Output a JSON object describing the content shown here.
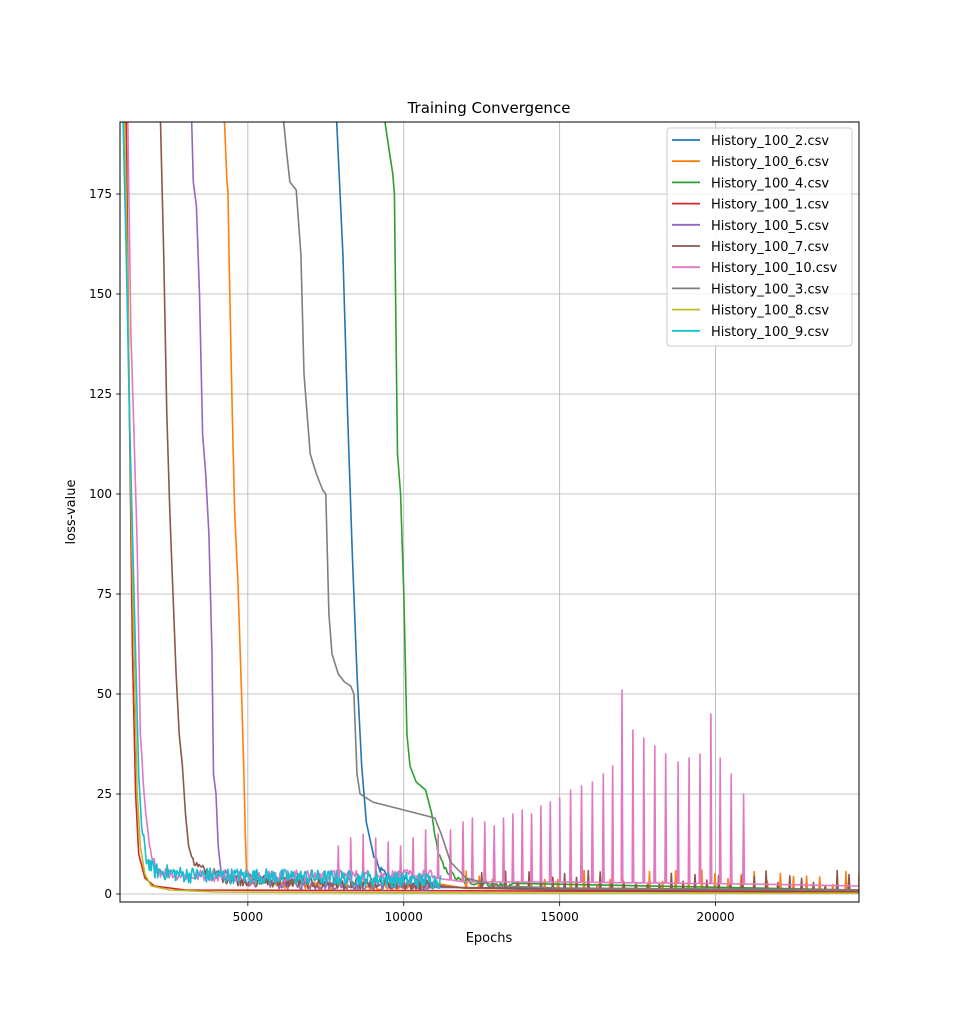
{
  "chart_data": {
    "type": "line",
    "title": "Training Convergence",
    "xlabel": "Epochs",
    "ylabel": "loss-value",
    "xlim": [
      900,
      24600
    ],
    "ylim": [
      -2,
      193
    ],
    "x_ticks": [
      5000,
      10000,
      15000,
      20000
    ],
    "y_ticks": [
      0,
      25,
      50,
      75,
      100,
      125,
      150,
      175
    ],
    "grid": true,
    "legend_position": "top-right",
    "series": [
      {
        "name": "History_100_2.csv",
        "color": "#1f77b4",
        "points": [
          [
            7850,
            193
          ],
          [
            8050,
            160
          ],
          [
            8200,
            120
          ],
          [
            8350,
            85
          ],
          [
            8500,
            55
          ],
          [
            8650,
            32
          ],
          [
            8800,
            18
          ],
          [
            9000,
            10
          ],
          [
            9200,
            6
          ],
          [
            9500,
            4
          ],
          [
            10000,
            3
          ],
          [
            10500,
            2.5
          ],
          [
            11200,
            2
          ],
          [
            12000,
            1.5
          ],
          [
            15000,
            1
          ],
          [
            20000,
            0.8
          ],
          [
            24600,
            0.7
          ]
        ],
        "noise": {
          "from": 9000,
          "to": 11200,
          "amp": 2,
          "step": 40
        }
      },
      {
        "name": "History_100_6.csv",
        "color": "#ff7f0e",
        "points": [
          [
            4250,
            193
          ],
          [
            4330,
            178
          ],
          [
            4360,
            176
          ],
          [
            4420,
            150
          ],
          [
            4500,
            120
          ],
          [
            4580,
            95
          ],
          [
            4680,
            78
          ],
          [
            4750,
            62
          ],
          [
            4820,
            45
          ],
          [
            4880,
            28
          ],
          [
            4920,
            15
          ],
          [
            4960,
            5
          ],
          [
            5100,
            3
          ],
          [
            6000,
            2
          ],
          [
            9000,
            1.5
          ],
          [
            24600,
            1
          ]
        ],
        "spikes": {
          "from": 12000,
          "to": 24600,
          "step": 420,
          "min": 2,
          "max": 6
        },
        "noise": {
          "from": 5000,
          "to": 11000,
          "amp": 2,
          "step": 40
        }
      },
      {
        "name": "History_100_4.csv",
        "color": "#2ca02c",
        "points": [
          [
            9400,
            193
          ],
          [
            9550,
            185
          ],
          [
            9650,
            180
          ],
          [
            9700,
            175
          ],
          [
            9750,
            140
          ],
          [
            9800,
            110
          ],
          [
            9900,
            100
          ],
          [
            10000,
            75
          ],
          [
            10100,
            40
          ],
          [
            10200,
            32
          ],
          [
            10400,
            28
          ],
          [
            10700,
            26
          ],
          [
            10900,
            20
          ],
          [
            11100,
            10
          ],
          [
            11300,
            6
          ],
          [
            11800,
            3
          ],
          [
            13000,
            2
          ],
          [
            24600,
            1
          ]
        ],
        "noise": {
          "from": 11000,
          "to": 13500,
          "amp": 1.5,
          "step": 50
        }
      },
      {
        "name": "History_100_1.csv",
        "color": "#d62728",
        "points": [
          [
            1100,
            193
          ],
          [
            1200,
            120
          ],
          [
            1300,
            60
          ],
          [
            1400,
            25
          ],
          [
            1500,
            10
          ],
          [
            1700,
            4
          ],
          [
            2000,
            2
          ],
          [
            3000,
            1
          ],
          [
            24600,
            0.5
          ]
        ]
      },
      {
        "name": "History_100_5.csv",
        "color": "#9467bd",
        "points": [
          [
            3200,
            193
          ],
          [
            3250,
            178
          ],
          [
            3350,
            172
          ],
          [
            3450,
            150
          ],
          [
            3550,
            115
          ],
          [
            3650,
            105
          ],
          [
            3750,
            90
          ],
          [
            3850,
            60
          ],
          [
            3900,
            30
          ],
          [
            3980,
            25
          ],
          [
            4050,
            12
          ],
          [
            4150,
            5
          ],
          [
            4500,
            3
          ],
          [
            6000,
            2
          ],
          [
            10000,
            1.5
          ],
          [
            24600,
            1
          ]
        ],
        "noise": {
          "from": 4200,
          "to": 11000,
          "amp": 2.5,
          "step": 40
        }
      },
      {
        "name": "History_100_7.csv",
        "color": "#8c564b",
        "points": [
          [
            2200,
            193
          ],
          [
            2300,
            160
          ],
          [
            2400,
            120
          ],
          [
            2500,
            95
          ],
          [
            2600,
            75
          ],
          [
            2700,
            55
          ],
          [
            2800,
            40
          ],
          [
            2900,
            32
          ],
          [
            3000,
            20
          ],
          [
            3100,
            12
          ],
          [
            3300,
            7
          ],
          [
            3600,
            5
          ],
          [
            4500,
            3
          ],
          [
            8000,
            2
          ],
          [
            12000,
            1.5
          ],
          [
            24600,
            1
          ]
        ],
        "spikes": {
          "from": 12500,
          "to": 24600,
          "step": 380,
          "min": 2,
          "max": 6
        },
        "noise": {
          "from": 3200,
          "to": 11000,
          "amp": 3,
          "step": 40
        }
      },
      {
        "name": "History_100_10.csv",
        "color": "#e377c2",
        "points": [
          [
            1150,
            193
          ],
          [
            1250,
            140
          ],
          [
            1350,
            115
          ],
          [
            1450,
            88
          ],
          [
            1550,
            40
          ],
          [
            1700,
            20
          ],
          [
            1900,
            8
          ],
          [
            2200,
            5
          ],
          [
            3000,
            4
          ],
          [
            6000,
            4
          ],
          [
            9000,
            4
          ],
          [
            11000,
            4
          ],
          [
            12000,
            3
          ],
          [
            15000,
            3
          ],
          [
            21100,
            2.5
          ],
          [
            24600,
            2
          ]
        ],
        "spikes_list": [
          [
            7900,
            12
          ],
          [
            8300,
            14
          ],
          [
            8700,
            15
          ],
          [
            9100,
            14
          ],
          [
            9500,
            13
          ],
          [
            9900,
            12
          ],
          [
            10300,
            14
          ],
          [
            10700,
            16
          ],
          [
            11100,
            15
          ],
          [
            11500,
            16
          ],
          [
            11900,
            18
          ],
          [
            12200,
            19
          ],
          [
            12600,
            18
          ],
          [
            12900,
            17
          ],
          [
            13200,
            19
          ],
          [
            13500,
            20
          ],
          [
            13800,
            21
          ],
          [
            14100,
            20
          ],
          [
            14400,
            22
          ],
          [
            14700,
            23
          ],
          [
            15000,
            24
          ],
          [
            15350,
            26
          ],
          [
            15700,
            27
          ],
          [
            16050,
            28
          ],
          [
            16400,
            30
          ],
          [
            16700,
            32
          ],
          [
            17000,
            51
          ],
          [
            17350,
            41
          ],
          [
            17700,
            39
          ],
          [
            18050,
            37
          ],
          [
            18400,
            35
          ],
          [
            18800,
            33
          ],
          [
            19150,
            34
          ],
          [
            19500,
            35
          ],
          [
            19850,
            45
          ],
          [
            20150,
            34
          ],
          [
            20500,
            30
          ],
          [
            20900,
            25
          ]
        ],
        "noise": {
          "from": 1600,
          "to": 11000,
          "amp": 3,
          "step": 40
        }
      },
      {
        "name": "History_100_3.csv",
        "color": "#7f7f7f",
        "points": [
          [
            6150,
            193
          ],
          [
            6250,
            185
          ],
          [
            6350,
            178
          ],
          [
            6550,
            176
          ],
          [
            6700,
            160
          ],
          [
            6800,
            130
          ],
          [
            7000,
            110
          ],
          [
            7200,
            105
          ],
          [
            7400,
            101
          ],
          [
            7500,
            100
          ],
          [
            7600,
            70
          ],
          [
            7700,
            60
          ],
          [
            7900,
            55
          ],
          [
            8100,
            53
          ],
          [
            8300,
            52
          ],
          [
            8400,
            50
          ],
          [
            8500,
            30
          ],
          [
            8600,
            25
          ],
          [
            9000,
            23
          ],
          [
            9500,
            22
          ],
          [
            10000,
            21
          ],
          [
            10500,
            20
          ],
          [
            11000,
            19
          ],
          [
            11200,
            15
          ],
          [
            11500,
            8
          ],
          [
            12000,
            4
          ],
          [
            13000,
            2
          ],
          [
            15000,
            1.5
          ],
          [
            24600,
            1
          ]
        ]
      },
      {
        "name": "History_100_8.csv",
        "color": "#bcbd22",
        "points": [
          [
            1050,
            193
          ],
          [
            1150,
            150
          ],
          [
            1250,
            100
          ],
          [
            1350,
            60
          ],
          [
            1450,
            26
          ],
          [
            1550,
            12
          ],
          [
            1700,
            5
          ],
          [
            1900,
            2
          ],
          [
            2500,
            1
          ],
          [
            4000,
            0.5
          ],
          [
            10000,
            0.3
          ],
          [
            24600,
            0.2
          ]
        ]
      },
      {
        "name": "History_100_9.csv",
        "color": "#17becf",
        "points": [
          [
            1000,
            193
          ],
          [
            1100,
            160
          ],
          [
            1200,
            120
          ],
          [
            1300,
            90
          ],
          [
            1400,
            60
          ],
          [
            1500,
            30
          ],
          [
            1600,
            15
          ],
          [
            1750,
            8
          ],
          [
            2000,
            5
          ],
          [
            3000,
            4
          ],
          [
            6000,
            3.5
          ],
          [
            9000,
            3
          ],
          [
            11200,
            2.5
          ]
        ],
        "noise": {
          "from": 1600,
          "to": 11200,
          "amp": 4,
          "step": 30
        }
      }
    ]
  }
}
